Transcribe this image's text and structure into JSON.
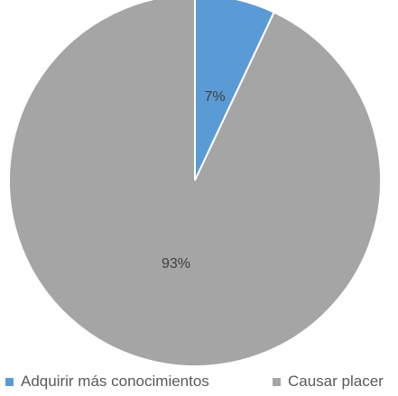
{
  "chart_data": {
    "type": "pie",
    "slices": [
      {
        "label": "Adquirir más conocimientos",
        "value": 7,
        "display": "7%",
        "color": "#5b9bd5"
      },
      {
        "label": "Causar placer",
        "value": 93,
        "display": "93%",
        "color": "#a5a5a5"
      }
    ],
    "legend_position": "bottom"
  },
  "legend": {
    "items": [
      {
        "label": "Adquirir más conocimientos",
        "color": "#5b9bd5"
      },
      {
        "label": "Causar placer",
        "color": "#a5a5a5"
      }
    ]
  }
}
